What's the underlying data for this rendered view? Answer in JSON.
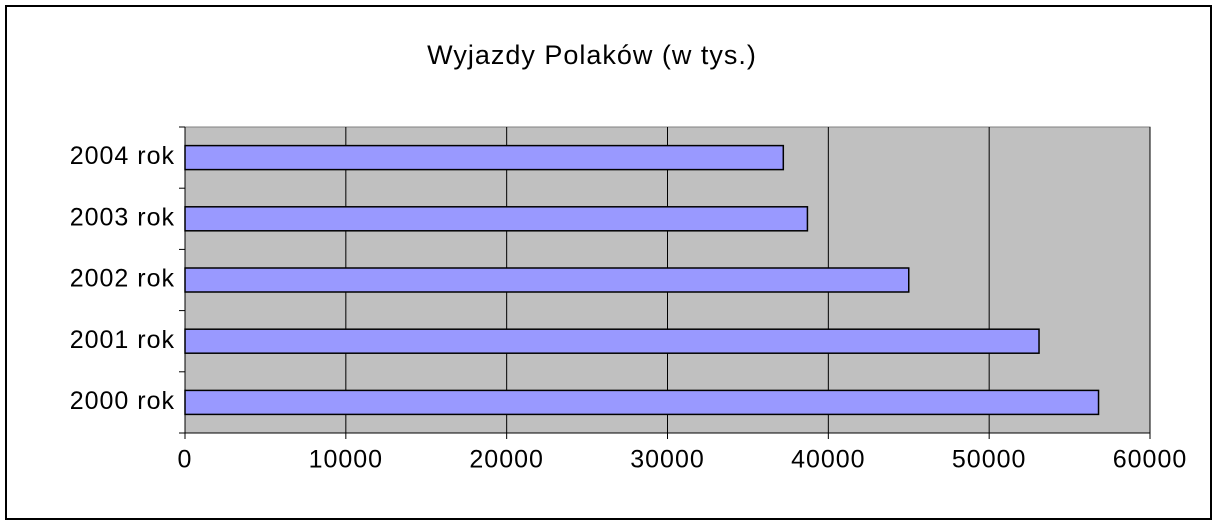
{
  "chart_data": {
    "type": "bar",
    "orientation": "horizontal",
    "title": "Wyjazdy Polaków (w tys.)",
    "categories": [
      "2000 rok",
      "2001 rok",
      "2002 rok",
      "2003 rok",
      "2004 rok"
    ],
    "values": [
      56800,
      53100,
      45000,
      38700,
      37200
    ],
    "color": "#9999ff",
    "xlim": [
      0,
      60000
    ],
    "xticks": [
      0,
      10000,
      20000,
      30000,
      40000,
      50000,
      60000
    ],
    "grid": true
  }
}
